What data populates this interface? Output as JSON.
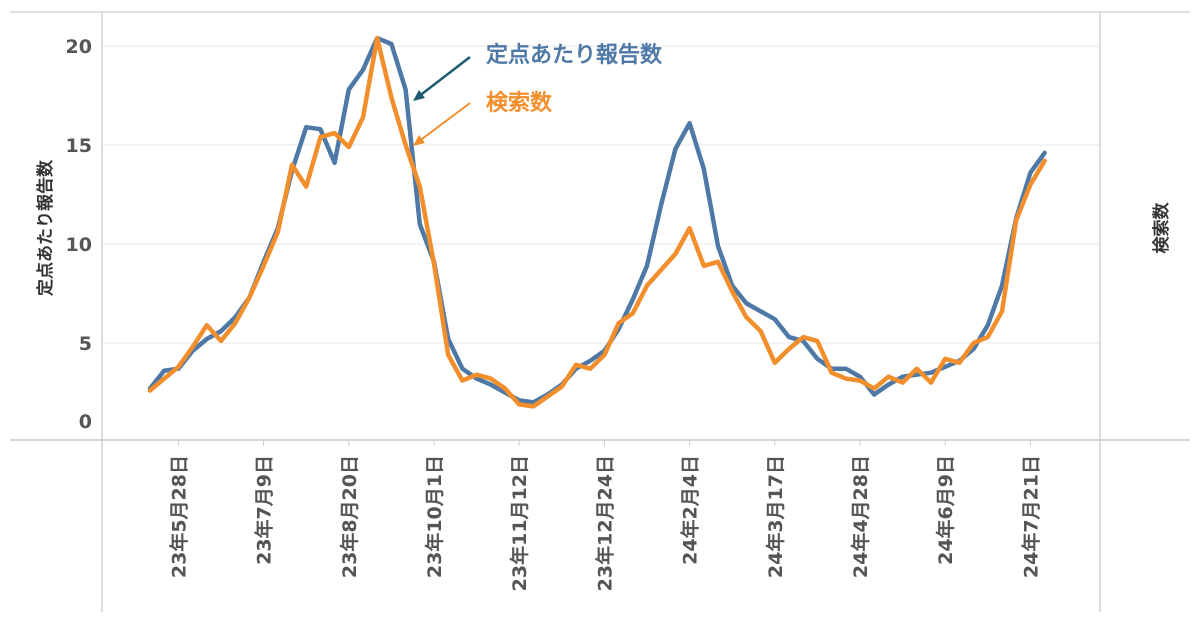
{
  "chart_data": {
    "type": "line",
    "title": "",
    "xlabel": "",
    "ylabel": "定点あたり報告数",
    "ylabel_right": "検索数",
    "ylim": [
      0,
      21
    ],
    "yticks": [
      0,
      5,
      10,
      15,
      20
    ],
    "grid": true,
    "x_start_week": "23年5月14日",
    "x_interval": "weekly",
    "xtick_labels": [
      "23年5月28日",
      "23年7月9日",
      "23年8月20日",
      "23年10月1日",
      "23年11月12日",
      "23年12月24日",
      "24年2月4日",
      "24年3月17日",
      "24年4月28日",
      "24年6月9日",
      "24年7月21日"
    ],
    "xtick_week_index": [
      2,
      8,
      14,
      20,
      26,
      32,
      38,
      44,
      50,
      56,
      62
    ],
    "series": [
      {
        "name": "定点あたり報告数",
        "color": "#4e79a7",
        "values": [
          2.7,
          3.6,
          3.7,
          4.6,
          5.2,
          5.6,
          6.3,
          7.3,
          9.1,
          10.8,
          13.7,
          15.9,
          15.8,
          14.1,
          17.8,
          18.8,
          20.4,
          20.1,
          17.8,
          11.0,
          9.1,
          5.2,
          3.7,
          3.2,
          2.9,
          2.5,
          2.1,
          2.0,
          2.4,
          2.9,
          3.7,
          4.1,
          4.6,
          5.7,
          7.2,
          8.9,
          12.0,
          14.8,
          16.1,
          13.8,
          9.9,
          7.9,
          7.0,
          6.6,
          6.2,
          5.3,
          5.1,
          4.2,
          3.7,
          3.7,
          3.3,
          2.4,
          2.9,
          3.3,
          3.4,
          3.5,
          3.8,
          4.1,
          4.7,
          5.9,
          7.9,
          11.3,
          13.6,
          14.6
        ]
      },
      {
        "name": "検索数",
        "color": "#f28e2b",
        "values": [
          2.6,
          3.2,
          3.8,
          4.8,
          5.9,
          5.1,
          6.0,
          7.3,
          8.9,
          10.6,
          14.0,
          12.9,
          15.4,
          15.6,
          14.9,
          16.4,
          20.4,
          17.4,
          15.0,
          12.9,
          9.0,
          4.4,
          3.1,
          3.4,
          3.2,
          2.7,
          1.9,
          1.8,
          2.3,
          2.8,
          3.9,
          3.7,
          4.4,
          6.0,
          6.5,
          7.9,
          8.7,
          9.5,
          10.8,
          8.9,
          9.1,
          7.6,
          6.3,
          5.6,
          4.0,
          4.7,
          5.3,
          5.1,
          3.5,
          3.2,
          3.1,
          2.7,
          3.3,
          3.0,
          3.7,
          3.0,
          4.2,
          4.0,
          5.0,
          5.3,
          6.6,
          11.2,
          13.0,
          14.2
        ]
      }
    ],
    "annotations": [
      {
        "text": "定点あたり報告数",
        "color": "#4e79a7",
        "arrow_color": "#1f5a73"
      },
      {
        "text": "検索数",
        "color": "#f28e2b",
        "arrow_color": "#f28e2b"
      }
    ]
  }
}
